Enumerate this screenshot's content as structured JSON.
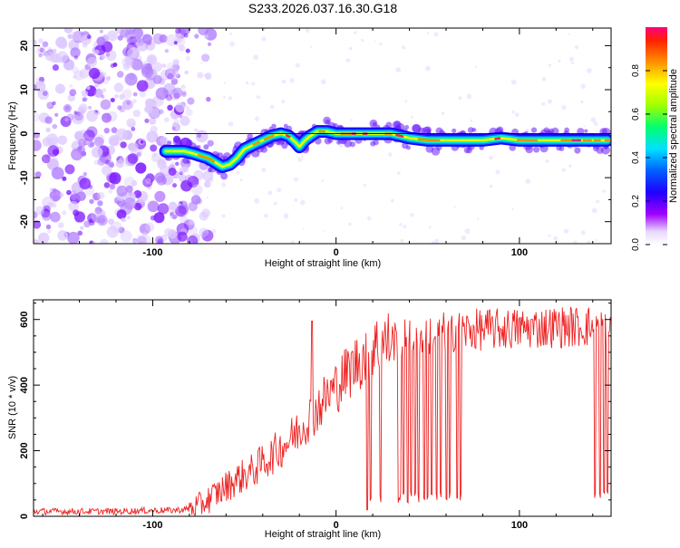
{
  "title": "S233.2026.037.16.30.G18",
  "chart_data": [
    {
      "type": "heatmap",
      "xlabel": "Height of straight line (km)",
      "ylabel": "Frequency (Hz)",
      "xlim": [
        -165,
        150
      ],
      "ylim": [
        -25,
        24
      ],
      "xticks": [
        -100,
        0,
        100
      ],
      "yticks": [
        -20,
        -10,
        0,
        10,
        20
      ],
      "colorbar": {
        "label": "Normalized spectral amplitude",
        "range": [
          0,
          1
        ],
        "ticks": [
          0.0,
          0.2,
          0.4,
          0.6,
          0.8
        ],
        "colors": [
          "#ffffff",
          "#a000ff",
          "#0000ff",
          "#00e0ff",
          "#00ff40",
          "#ffff00",
          "#ff8000",
          "#ff0060"
        ]
      },
      "noise_region": [
        -165,
        -80
      ],
      "ridge": {
        "x": [
          -93,
          -88,
          -83,
          -78,
          -74,
          -70,
          -66,
          -62,
          -58,
          -54,
          -50,
          -45,
          -40,
          -35,
          -30,
          -26,
          -22,
          -20,
          -17,
          -14,
          -10,
          -5,
          0,
          5,
          10,
          20,
          30,
          40,
          50,
          60,
          70,
          80,
          90,
          100,
          110,
          120,
          130,
          140,
          148
        ],
        "y": [
          -4,
          -4,
          -4,
          -4.5,
          -5,
          -5.5,
          -6.5,
          -7.5,
          -7,
          -5.5,
          -3.5,
          -2.5,
          -1.5,
          -0.5,
          0,
          -0.5,
          -2,
          -3,
          -1.5,
          -0.5,
          0.5,
          0.5,
          0,
          0,
          0,
          0,
          0,
          -1,
          -1.5,
          -1.5,
          -1.5,
          -1.5,
          -1,
          -1.5,
          -1.5,
          -1.5,
          -1.5,
          -1.5,
          -1.5
        ]
      }
    },
    {
      "type": "line",
      "xlabel": "Height of straight line (km)",
      "ylabel": "SNR (10 * v/v)",
      "xlim": [
        -165,
        150
      ],
      "ylim": [
        0,
        660
      ],
      "xticks": [
        -100,
        0,
        100
      ],
      "yticks": [
        0,
        200,
        400,
        600
      ],
      "color": "#ee2222",
      "trend": {
        "x": [
          -165,
          -140,
          -120,
          -100,
          -90,
          -80,
          -75,
          -70,
          -65,
          -60,
          -55,
          -50,
          -45,
          -40,
          -35,
          -30,
          -25,
          -20,
          -15,
          -10,
          -5,
          0,
          5,
          10,
          15,
          20,
          25,
          30,
          40,
          50,
          60,
          70,
          80,
          90,
          100,
          110,
          120,
          130,
          140,
          150
        ],
        "y": [
          15,
          15,
          15,
          18,
          18,
          22,
          30,
          50,
          70,
          90,
          110,
          125,
          140,
          165,
          185,
          210,
          235,
          265,
          300,
          330,
          365,
          395,
          430,
          460,
          490,
          515,
          525,
          535,
          545,
          555,
          560,
          565,
          570,
          570,
          572,
          575,
          578,
          578,
          580,
          580
        ]
      },
      "spike": {
        "x": -13,
        "y": 595
      },
      "dropouts_x": [
        17,
        19,
        24,
        34,
        35,
        37,
        39,
        41,
        43,
        45,
        48,
        50,
        52,
        55,
        57,
        60,
        62,
        66,
        68,
        141,
        144,
        146,
        148
      ]
    }
  ]
}
